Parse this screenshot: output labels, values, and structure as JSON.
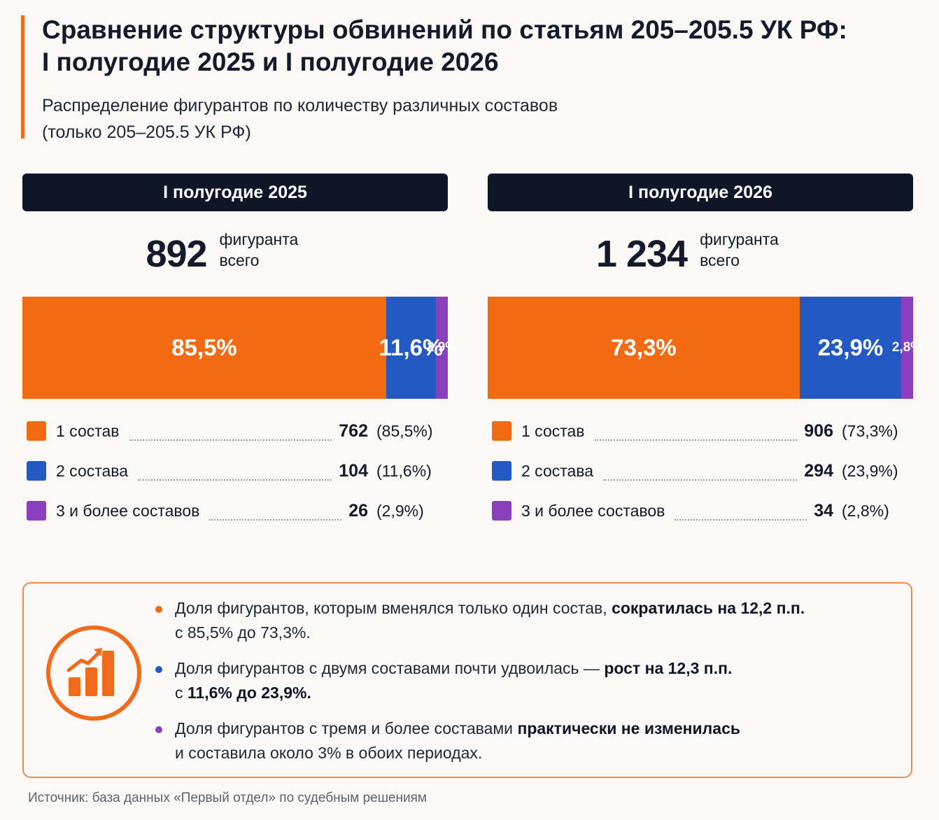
{
  "title_line1": "Сравнение структуры обвинений по статьям 205–205.5 УК РФ:",
  "title_line2": "I полугодие 2025 и I полугодие 2026",
  "subtitle_line1": "Распределение фигурантов по количеству различных составов",
  "subtitle_line2": "(только 205–205.5 УК РФ)",
  "colors": {
    "one": "#f26a12",
    "two": "#2459c4",
    "three": "#8a3fbf",
    "accent": "#f26a1b"
  },
  "chart_data": [
    {
      "type": "bar",
      "stacked": "horizontal-100%",
      "title": "I полугодие 2025",
      "total": "892",
      "total_label_line1": "фигуранта",
      "total_label_line2": "всего",
      "categories": [
        "1 состав",
        "2 состава",
        "3 и более составов"
      ],
      "values": [
        762,
        104,
        26
      ],
      "percent": [
        85.5,
        11.6,
        2.9
      ],
      "percent_labels": [
        "85,5%",
        "11,6%",
        "2,9%"
      ],
      "value_labels": [
        "762",
        "104",
        "26"
      ],
      "pct_labels": [
        "(85,5%)",
        "(11,6%)",
        "(2,9%)"
      ]
    },
    {
      "type": "bar",
      "stacked": "horizontal-100%",
      "title": "I полугодие 2026",
      "total": "1 234",
      "total_label_line1": "фигуранта",
      "total_label_line2": "всего",
      "categories": [
        "1 состав",
        "2 состава",
        "3 и более составов"
      ],
      "values": [
        906,
        294,
        34
      ],
      "percent": [
        73.3,
        23.9,
        2.8
      ],
      "percent_labels": [
        "73,3%",
        "23,9%",
        "2,8%"
      ],
      "value_labels": [
        "906",
        "294",
        "34"
      ],
      "pct_labels": [
        "(73,3%)",
        "(23,9%)",
        "(2,8%)"
      ]
    }
  ],
  "insights": [
    {
      "dot": "one",
      "text1": "Доля фигурантов, которым вменялся только один состав, ",
      "bold1": "сократилась на 12,2 п.п.",
      "text2": "с 85,5% до 73,3%.",
      "bold2": ""
    },
    {
      "dot": "two",
      "text1": "Доля фигурантов с двумя составами почти удвоилась — ",
      "bold1": "рост на 12,3 п.п.",
      "text2": "с ",
      "bold2": "11,6% до 23,9%."
    },
    {
      "dot": "three",
      "text1": "Доля фигурантов с тремя и более составами ",
      "bold1": "практически не изменилась",
      "text2": "и составила около 3% в обоих периодах.",
      "bold2": ""
    }
  ],
  "insight_icon": "bar-chart-growth-icon",
  "source": "Источник: база данных «Первый отдел» по судебным решениям"
}
